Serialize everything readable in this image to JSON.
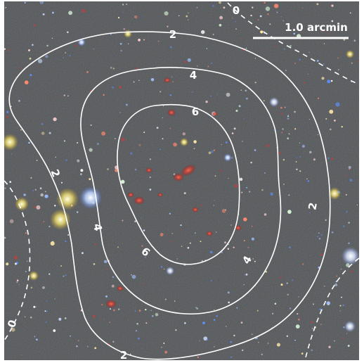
{
  "image": {
    "subject": "astronomical color composite image with contours",
    "scale_bar": {
      "label": "1.0 arcmin"
    },
    "contours": [
      {
        "level": "0",
        "style": "dashed"
      },
      {
        "level": "2",
        "style": "solid"
      },
      {
        "level": "4",
        "style": "solid"
      },
      {
        "level": "6",
        "style": "solid"
      }
    ],
    "contour_labels": {
      "c0_top": "0",
      "c0_left": "0",
      "c2_top": "2",
      "c2_left": "2",
      "c2_right": "2",
      "c2_bottom": "2",
      "c4_top": "4",
      "c4_left": "4",
      "c4_right": "4",
      "c6_top": "6",
      "c6_bottom": "6"
    },
    "colors": {
      "background": "#3b3d40",
      "contour": "#ffffff",
      "red_galaxies": "#c0302a"
    }
  }
}
